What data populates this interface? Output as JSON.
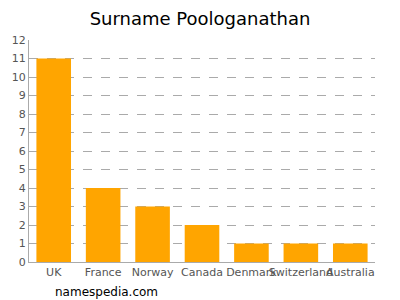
{
  "chart_data": {
    "type": "bar",
    "title": "Surname Poologanathan",
    "categories": [
      "UK",
      "France",
      "Norway",
      "Canada",
      "Denmark",
      "Switzerland",
      "Australia"
    ],
    "values": [
      11,
      4,
      3,
      2,
      1,
      1,
      1
    ],
    "color": "#ffa500",
    "ylim": [
      0,
      12
    ],
    "yticks": [
      0,
      1,
      2,
      3,
      4,
      5,
      6,
      7,
      8,
      9,
      10,
      11,
      12
    ],
    "grid": true,
    "annotations": [
      {
        "text": "namespedia.com"
      }
    ]
  }
}
